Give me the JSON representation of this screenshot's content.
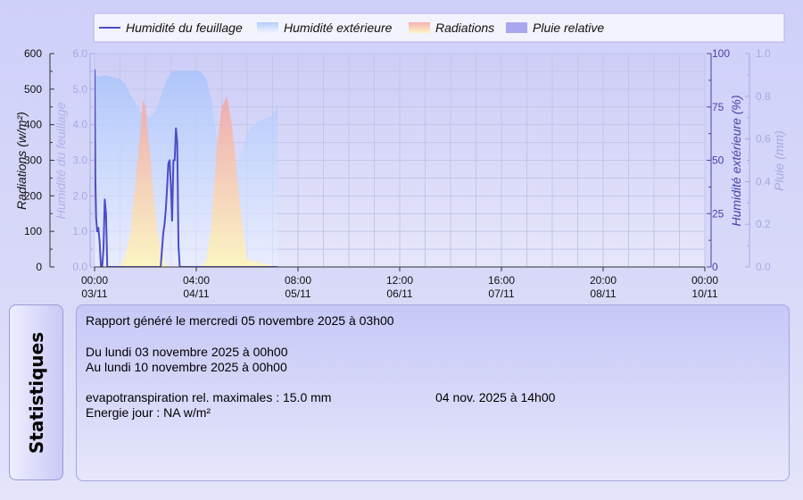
{
  "chart_data": {
    "type": "area",
    "legend": [
      {
        "name": "Humidité du feuillage",
        "color": "#4c4cc8",
        "kind": "line"
      },
      {
        "name": "Humidité extérieure",
        "color": "#cfe0ff",
        "kind": "area"
      },
      {
        "name": "Radiations",
        "color": "#f6c0b0",
        "kind": "area"
      },
      {
        "name": "Pluie relative",
        "color": "#a8a8f0",
        "kind": "area"
      }
    ],
    "axes": {
      "radiations": {
        "label": "Radiations (w/m²)",
        "min": 0,
        "max": 600,
        "ticks": [
          "0",
          "100",
          "200",
          "300",
          "400",
          "500",
          "600"
        ]
      },
      "leaf": {
        "label": "Humidité du feuillage",
        "min": 0,
        "max": 6,
        "ticks": [
          "0.0",
          "1.0",
          "2.0",
          "3.0",
          "4.0",
          "5.0",
          "6.0"
        ]
      },
      "humidity": {
        "label": "Humidité extérieure (%)",
        "min": 0,
        "max": 100,
        "ticks": [
          "0",
          "25",
          "50",
          "75",
          "100"
        ]
      },
      "rain": {
        "label": "Pluie (mm)",
        "min": 0,
        "max": 1,
        "ticks": [
          "0.0",
          "0.2",
          "0.4",
          "0.6",
          "0.8",
          "1.0"
        ]
      }
    },
    "x_ticks": [
      {
        "time": "00:00",
        "date": "03/11"
      },
      {
        "time": "04:00",
        "date": "04/11"
      },
      {
        "time": "08:00",
        "date": "05/11"
      },
      {
        "time": "12:00",
        "date": "06/11"
      },
      {
        "time": "16:00",
        "date": "07/11"
      },
      {
        "time": "20:00",
        "date": "08/11"
      },
      {
        "time": "00:00",
        "date": "10/11"
      }
    ],
    "x_range_hours": [
      0,
      24
    ],
    "grid": true,
    "series": [
      {
        "name": "Humidité extérieure",
        "axis": "humidity",
        "x": [
          0,
          0.15,
          0.4,
          0.7,
          1.0,
          1.2,
          1.4,
          1.6,
          1.8,
          2.0,
          2.2,
          2.4,
          2.6,
          2.8,
          3.0,
          3.2,
          3.4,
          3.6,
          3.8,
          4.0,
          4.2,
          4.4,
          4.6,
          4.8,
          5.0,
          5.2,
          5.4,
          5.6,
          5.8,
          6.0,
          6.2,
          6.4,
          6.6,
          6.8,
          7.0,
          7.2
        ],
        "y": [
          91,
          89,
          90,
          89,
          88,
          86,
          81,
          77,
          73,
          71,
          70,
          73,
          80,
          87,
          91,
          92,
          92,
          92,
          92,
          92,
          91,
          88,
          78,
          61,
          45,
          42,
          43,
          48,
          55,
          62,
          66,
          68,
          69,
          70,
          71,
          76
        ]
      },
      {
        "name": "Radiations",
        "axis": "radiations",
        "x": [
          0,
          1.0,
          1.2,
          1.4,
          1.6,
          1.8,
          1.9,
          2.0,
          2.2,
          2.4,
          2.6,
          2.8,
          3.0,
          4.0,
          4.2,
          4.4,
          4.6,
          4.8,
          5.0,
          5.2,
          5.4,
          5.6,
          5.8,
          6.0,
          7.2
        ],
        "y": [
          0,
          0,
          30,
          90,
          230,
          380,
          470,
          450,
          300,
          140,
          40,
          5,
          0,
          0,
          0,
          20,
          120,
          330,
          450,
          480,
          400,
          260,
          120,
          20,
          0
        ]
      },
      {
        "name": "Humidité du feuillage",
        "axis": "leaf",
        "x": [
          0,
          0.03,
          0.06,
          0.1,
          0.15,
          0.2,
          0.25,
          0.3,
          0.35,
          0.4,
          0.45,
          0.5,
          0.55,
          0.6,
          0.65,
          0.7,
          0.75,
          0.8,
          0.85,
          2.6,
          2.7,
          2.75,
          2.8,
          2.85,
          2.9,
          2.95,
          3.0,
          3.05,
          3.1,
          3.15,
          3.2,
          3.25,
          3.3,
          3.35,
          3.4,
          3.45,
          3.5,
          3.55,
          3.6,
          7.2
        ],
        "y": [
          5.55,
          2.5,
          1.4,
          1.0,
          1.1,
          0.7,
          0,
          0,
          0.5,
          1.9,
          1.5,
          0,
          0,
          0,
          0,
          0,
          0,
          0,
          0,
          0,
          0.95,
          1.2,
          1.6,
          2.2,
          2.9,
          3.0,
          2.3,
          1.3,
          3.0,
          3.0,
          3.9,
          3.5,
          0.6,
          0,
          0,
          0,
          0,
          0,
          0,
          0
        ]
      }
    ]
  },
  "stats": {
    "tab_label": "Statistiques",
    "report_line": "Rapport généré le mercredi 05 novembre 2025 à 03h00",
    "from_line": "Du lundi 03 novembre 2025 à 00h00",
    "to_line": "Au lundi 10 novembre 2025 à 00h00",
    "evapo_line": "evapotranspiration rel. maximales : 15.0 mm",
    "evapo_date": "04 nov. 2025 à 14h00",
    "energy_line": "Energie jour : NA w/m²"
  }
}
